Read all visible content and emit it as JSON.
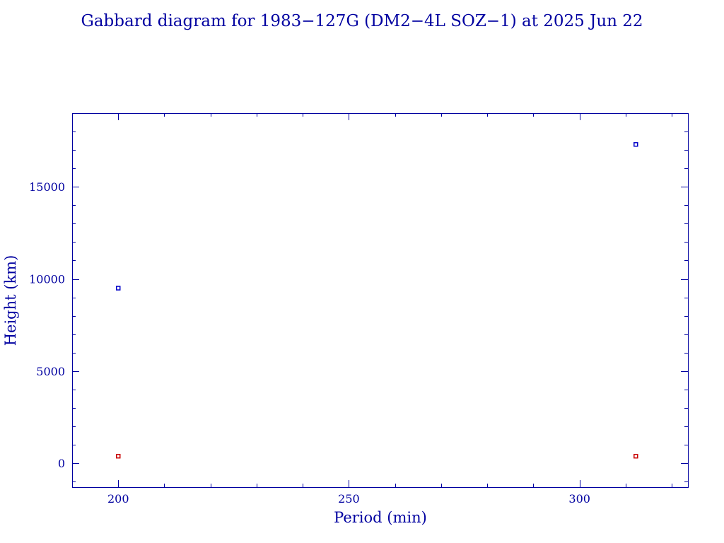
{
  "chart_data": {
    "type": "scatter",
    "title": "Gabbard diagram for 1983−127G (DM2−4L SOZ−1) at 2025 Jun 22",
    "xlabel": "Period (min)",
    "ylabel": "Height (km)",
    "xlim": [
      190,
      323.5
    ],
    "ylim": [
      -1300,
      19000
    ],
    "x_major_ticks": [
      200,
      250,
      300
    ],
    "x_tick_labels": [
      "200",
      "250",
      "300"
    ],
    "x_minor_step": 10,
    "y_major_ticks": [
      0,
      5000,
      10000,
      15000
    ],
    "y_tick_labels": [
      "0",
      "5000",
      "10000",
      "15000"
    ],
    "y_minor_step": 1000,
    "grid": false,
    "colors": {
      "axis": "#0000a0",
      "apogee": "#0000c8",
      "perigee": "#c80000"
    },
    "series": [
      {
        "role": "apogee",
        "color": "#0000c8",
        "points": [
          [
            200,
            9500
          ],
          [
            312.2,
            17300
          ]
        ]
      },
      {
        "role": "perigee",
        "color": "#c80000",
        "points": [
          [
            200,
            380
          ],
          [
            312.2,
            380
          ]
        ]
      }
    ]
  }
}
